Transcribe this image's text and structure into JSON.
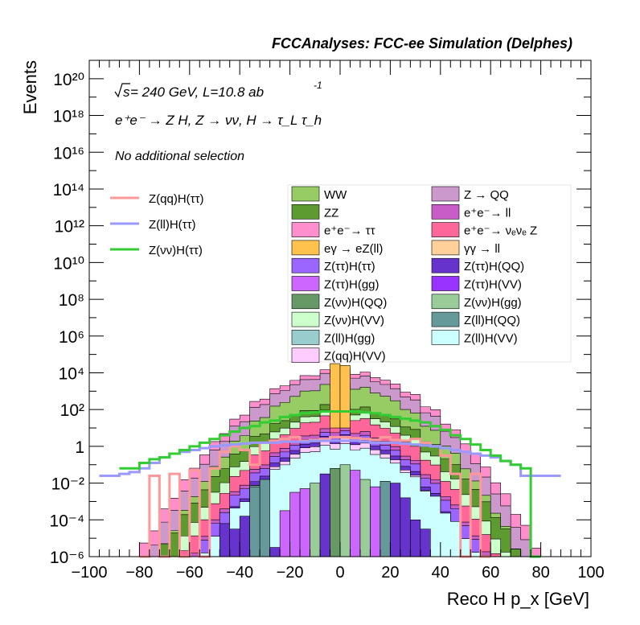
{
  "header": {
    "title": "FCCAnalyses: FCC-ee Simulation (Delphes)"
  },
  "annotations": {
    "energy_prefix": "s",
    "energy_text": " = 240 GeV, L=10.8 ab",
    "energy_exp": "-1",
    "process": "e⁺e⁻ → Z H, Z → νν, H → τ_L τ_h",
    "selection": "No additional selection"
  },
  "colors": {
    "WW": "#97cc64",
    "ZZ": "#5d9a30",
    "Z→QQ": "#cc99cc",
    "e+e-→ll": "#c85dc8",
    "e+e-→ττ": "#ff8fcc",
    "e+e-→νeνeZ": "#ff6699",
    "eγ→eZ(ll)": "#ffc34d",
    "γγ→ll": "#ffd099",
    "Z(ττ)H(ττ)": "#9a66ff",
    "Z(ττ)H(QQ)": "#6633cc",
    "Z(ττ)H(gg)": "#cc66ff",
    "Z(ττ)H(VV)": "#9933ff",
    "Z(νν)H(QQ)": "#669966",
    "Z(νν)H(gg)": "#99cc99",
    "Z(νν)H(VV)": "#ccffcc",
    "Z(ll)H(QQ)": "#669999",
    "Z(ll)H(gg)": "#99cccc",
    "Z(ll)H(VV)": "#ccffff",
    "Z(qq)H(VV)": "#ffccff",
    "sig_qq": "#ff9999",
    "sig_ll": "#9999ff",
    "sig_vv": "#33cc33"
  },
  "legend_signals": [
    {
      "label": "Z(qq)H(ττ)",
      "key": "sig_qq"
    },
    {
      "label": "Z(ll)H(ττ)",
      "key": "sig_ll"
    },
    {
      "label": "Z(νν)H(ττ)",
      "key": "sig_vv"
    }
  ],
  "legend_backgrounds": [
    {
      "label": "WW",
      "key": "WW"
    },
    {
      "label": "Z → QQ",
      "key": "Z→QQ"
    },
    {
      "label": "ZZ",
      "key": "ZZ"
    },
    {
      "label": "e⁺e⁻→ ll",
      "key": "e+e-→ll"
    },
    {
      "label": "e⁺e⁻→ ττ",
      "key": "e+e-→ττ"
    },
    {
      "label": "e⁺e⁻→ νₑνₑ Z",
      "key": "e+e-→νeνeZ"
    },
    {
      "label": "eγ → eZ(ll)",
      "key": "eγ→eZ(ll)"
    },
    {
      "label": "γγ → ll",
      "key": "γγ→ll"
    },
    {
      "label": "Z(ττ)H(ττ)",
      "key": "Z(ττ)H(ττ)"
    },
    {
      "label": "Z(ττ)H(QQ)",
      "key": "Z(ττ)H(QQ)"
    },
    {
      "label": "Z(ττ)H(gg)",
      "key": "Z(ττ)H(gg)"
    },
    {
      "label": "Z(ττ)H(VV)",
      "key": "Z(ττ)H(VV)"
    },
    {
      "label": "Z(νν)H(QQ)",
      "key": "Z(νν)H(QQ)"
    },
    {
      "label": "Z(νν)H(gg)",
      "key": "Z(νν)H(gg)"
    },
    {
      "label": "Z(νν)H(VV)",
      "key": "Z(νν)H(VV)"
    },
    {
      "label": "Z(ll)H(QQ)",
      "key": "Z(ll)H(QQ)"
    },
    {
      "label": "Z(ll)H(gg)",
      "key": "Z(ll)H(gg)"
    },
    {
      "label": "Z(ll)H(VV)",
      "key": "Z(ll)H(VV)"
    },
    {
      "label": "Z(qq)H(VV)",
      "key": "Z(qq)H(VV)"
    }
  ],
  "chart_data": {
    "type": "area",
    "xlabel": "Reco H p_x [GeV]",
    "ylabel": "Events",
    "xlim": [
      -100,
      100
    ],
    "ylim": [
      1e-06,
      1e+21
    ],
    "yscale": "log",
    "x_ticks": [
      -100,
      -80,
      -60,
      -40,
      -20,
      0,
      20,
      40,
      60,
      80,
      100
    ],
    "y_ticks": [
      {
        "label": "10⁻⁶",
        "value": 1e-06
      },
      {
        "label": "10⁻⁴",
        "value": 0.0001
      },
      {
        "label": "10⁻²",
        "value": 0.01
      },
      {
        "label": "1",
        "value": 1
      },
      {
        "label": "10²",
        "value": 100.0
      },
      {
        "label": "10⁴",
        "value": 10000.0
      },
      {
        "label": "10⁶",
        "value": 1000000.0
      },
      {
        "label": "10⁸",
        "value": 100000000.0
      },
      {
        "label": "10¹⁰",
        "value": 10000000000.0
      },
      {
        "label": "10¹²",
        "value": 1000000000000.0
      },
      {
        "label": "10¹⁴",
        "value": 100000000000000.0
      },
      {
        "label": "10¹⁶",
        "value": 1e+16
      },
      {
        "label": "10¹⁸",
        "value": 1e+18
      },
      {
        "label": "10²⁰",
        "value": 1e+20
      }
    ],
    "bin_width": 4,
    "bin_centers": [
      -98,
      -94,
      -90,
      -86,
      -82,
      -78,
      -74,
      -70,
      -66,
      -62,
      -58,
      -54,
      -50,
      -46,
      -42,
      -38,
      -34,
      -30,
      -26,
      -22,
      -18,
      -14,
      -10,
      -6,
      -2,
      2,
      6,
      10,
      14,
      18,
      22,
      26,
      30,
      34,
      38,
      42,
      46,
      50,
      54,
      58,
      62,
      66,
      70,
      74,
      78,
      82,
      86,
      90,
      94,
      98
    ],
    "stack_layers": [
      {
        "name": "Z(ll)H(VV)",
        "color_key": "Z(ll)H(VV)",
        "peak_log10": 0.0,
        "sigma": 55,
        "xmax": 82
      },
      {
        "name": "Z(qq)H(VV)",
        "color_key": "Z(qq)H(VV)",
        "peak_log10": 0.3,
        "sigma": 52,
        "xmax": 70
      },
      {
        "name": "Z(ττ)H(QQ)",
        "color_key": "Z(ττ)H(QQ)",
        "peak_log10": 0.5,
        "sigma": 52,
        "xmax": 72
      },
      {
        "name": "Z(ττ)H(ττ)",
        "color_key": "Z(ττ)H(ττ)",
        "peak_log10": 0.7,
        "sigma": 55,
        "xmax": 72
      },
      {
        "name": "e⁺e⁻→ ll",
        "color_key": "e+e-→ll",
        "peak_log10": 0.9,
        "sigma": 55,
        "xmax": 74
      },
      {
        "name": "e⁺e⁻→ νₑνₑ Z",
        "color_key": "e+e-→νeνeZ",
        "peak_log10": 1.6,
        "sigma": 56,
        "xmax": 80
      },
      {
        "name": "Z(νν)H(VV)",
        "color_key": "Z(νν)H(VV)",
        "peak_log10": 1.9,
        "sigma": 58,
        "xmax": 80
      },
      {
        "name": "ZZ",
        "color_key": "ZZ",
        "peak_log10": 2.2,
        "sigma": 62,
        "xmax": 92
      },
      {
        "name": "WW",
        "color_key": "WW",
        "peak_log10": 3.3,
        "sigma": 58,
        "xmax": 90
      },
      {
        "name": "Z → QQ",
        "color_key": "Z→QQ",
        "peak_log10": 3.9,
        "sigma": 60,
        "xmax": 92
      },
      {
        "name": "e⁺e⁻→ ττ",
        "color_key": "e+e-→ττ",
        "peak_log10": 4.1,
        "sigma": 62,
        "xmax": 94
      }
    ],
    "central_spike": {
      "x": [
        -2,
        2
      ],
      "log10_values": [
        4.5,
        4.4
      ],
      "color_key": "eγ→eZ(ll)"
    },
    "signal_lines": [
      {
        "name": "Z(qq)H(ττ)",
        "color_key": "sig_qq",
        "x": [
          -78,
          -74,
          -70,
          -66,
          -62,
          -58,
          -54,
          -50,
          -46,
          -42,
          -38,
          -34,
          -30,
          -26,
          -22,
          -18,
          -14,
          -10,
          -6,
          -2,
          2,
          6,
          10,
          14,
          18,
          22,
          26,
          30,
          34,
          38,
          42,
          46,
          50,
          54,
          58
        ],
        "log10_values": [
          -6,
          -1.6,
          -6,
          -1.5,
          -6,
          -1.3,
          -6,
          -1.2,
          -0.3,
          0.0,
          -0.2,
          -1.0,
          0.2,
          0.3,
          0.4,
          0.5,
          0.3,
          0.35,
          0.4,
          0.5,
          0.5,
          0.45,
          0.4,
          0.35,
          0.5,
          0.35,
          0.3,
          0.4,
          0.2,
          0.0,
          -0.5,
          -1.5,
          -6,
          -1.5,
          -6
        ]
      },
      {
        "name": "Z(ll)H(ττ)",
        "color_key": "sig_ll",
        "x": [
          -94,
          -90,
          -86,
          -82,
          -78,
          -74,
          -70,
          -66,
          -62,
          -58,
          -54,
          -50,
          -46,
          -42,
          -38,
          -34,
          -30,
          -26,
          -22,
          -18,
          -14,
          -10,
          -6,
          -2,
          2,
          6,
          10,
          14,
          18,
          22,
          26,
          30,
          34,
          38,
          42,
          46,
          50,
          54,
          58,
          62,
          66,
          70,
          74,
          78,
          82,
          86
        ],
        "log10_values": [
          -1.6,
          -1.6,
          -1.5,
          -1.4,
          -1.2,
          -0.9,
          -0.6,
          -0.4,
          -0.3,
          -0.2,
          -0.1,
          0.0,
          0.05,
          0.1,
          0.15,
          0.2,
          0.2,
          0.2,
          0.25,
          0.25,
          0.25,
          0.3,
          0.3,
          0.3,
          0.3,
          0.3,
          0.25,
          0.2,
          0.2,
          0.2,
          0.15,
          0.1,
          0.05,
          0.0,
          -0.1,
          -0.2,
          -0.3,
          -0.4,
          -0.5,
          -0.6,
          -0.8,
          -1.0,
          -1.6,
          -1.6,
          -1.6,
          -1.6
        ]
      },
      {
        "name": "Z(νν)H(ττ)",
        "color_key": "sig_vv",
        "x": [
          -86,
          -82,
          -78,
          -74,
          -70,
          -66,
          -62,
          -58,
          -54,
          -50,
          -46,
          -42,
          -38,
          -34,
          -30,
          -26,
          -22,
          -18,
          -14,
          -10,
          -6,
          -2,
          2,
          6,
          10,
          14,
          18,
          22,
          26,
          30,
          34,
          38,
          42,
          46,
          50,
          54,
          58,
          62,
          66,
          70,
          74,
          78
        ],
        "log10_values": [
          -1.2,
          -1.2,
          -0.9,
          -0.7,
          -0.6,
          -0.4,
          -0.2,
          0.0,
          0.2,
          0.4,
          0.6,
          0.8,
          1.0,
          1.1,
          1.3,
          1.4,
          1.6,
          1.7,
          1.8,
          1.85,
          1.9,
          1.9,
          1.9,
          1.9,
          1.85,
          1.8,
          1.7,
          1.6,
          1.5,
          1.4,
          1.3,
          1.1,
          0.9,
          0.6,
          0.4,
          0.1,
          -0.2,
          -0.5,
          -0.8,
          -1.0,
          -1.2,
          -6
        ]
      }
    ],
    "filled_bars": [
      {
        "x": -46,
        "log10": -4.2,
        "color_key": "Z(ττ)H(QQ)"
      },
      {
        "x": -42,
        "log10": -4.5,
        "color_key": "Z(ττ)H(QQ)"
      },
      {
        "x": -38,
        "log10": -3.8,
        "color_key": "Z(ττ)H(QQ)"
      },
      {
        "x": -34,
        "log10": -2.2,
        "color_key": "Z(ll)H(QQ)"
      },
      {
        "x": -30,
        "log10": -1.8,
        "color_key": "Z(ll)H(QQ)"
      },
      {
        "x": -26,
        "log10": -5.5,
        "color_key": "Z(ττ)H(QQ)"
      },
      {
        "x": -22,
        "log10": -3.5,
        "color_key": "Z(ττ)H(gg)"
      },
      {
        "x": -18,
        "log10": -2.5,
        "color_key": "Z(ττ)H(gg)"
      },
      {
        "x": -14,
        "log10": -2.3,
        "color_key": "Z(ττ)H(gg)"
      },
      {
        "x": -10,
        "log10": -2.0,
        "color_key": "Z(νν)H(gg)"
      },
      {
        "x": -6,
        "log10": -1.5,
        "color_key": "Z(ττ)H(QQ)"
      },
      {
        "x": -2,
        "log10": -1.2,
        "color_key": "Z(νν)H(QQ)"
      },
      {
        "x": 2,
        "log10": -1.0,
        "color_key": "Z(νν)H(gg)"
      },
      {
        "x": 6,
        "log10": -1.3,
        "color_key": "Z(ττ)H(gg)"
      },
      {
        "x": 10,
        "log10": -1.8,
        "color_key": "Z(νν)H(gg)"
      },
      {
        "x": 14,
        "log10": -2.2,
        "color_key": "Z(ττ)H(gg)"
      },
      {
        "x": 18,
        "log10": -1.9,
        "color_key": "Z(ll)H(QQ)"
      },
      {
        "x": 22,
        "log10": -2.0,
        "color_key": "Z(ττ)H(QQ)"
      },
      {
        "x": 26,
        "log10": -2.8,
        "color_key": "Z(ττ)H(QQ)"
      },
      {
        "x": 30,
        "log10": -4.0,
        "color_key": "Z(ττ)H(QQ)"
      },
      {
        "x": 34,
        "log10": -4.5,
        "color_key": "Z(ττ)H(QQ)"
      }
    ]
  }
}
